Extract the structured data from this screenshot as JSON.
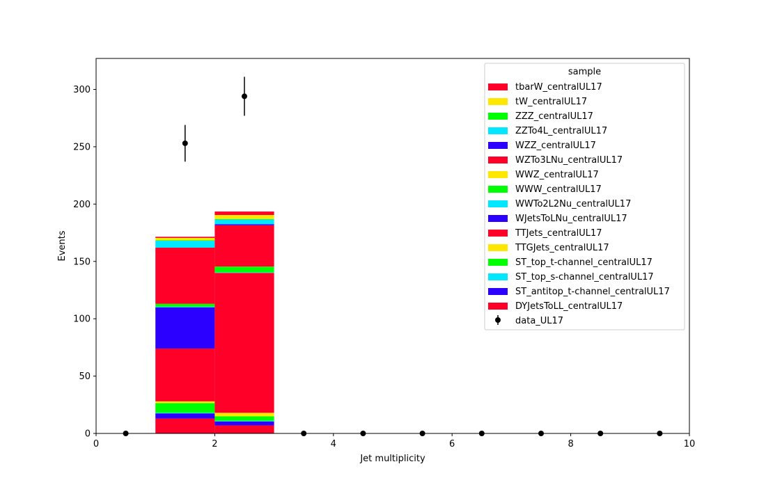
{
  "chart_data": {
    "type": "bar",
    "stacked": true,
    "xlabel": "Jet multiplicity",
    "ylabel": "Events",
    "xlim": [
      0,
      10
    ],
    "ylim": [
      0,
      327
    ],
    "xticks": [
      0,
      2,
      4,
      6,
      8,
      10
    ],
    "yticks": [
      0,
      50,
      100,
      150,
      200,
      250,
      300
    ],
    "grid": false,
    "legend": {
      "title": "sample",
      "placement": "top-right"
    },
    "bins": [
      [
        0,
        1
      ],
      [
        1,
        2
      ],
      [
        2,
        3
      ],
      [
        3,
        4
      ],
      [
        4,
        5
      ],
      [
        5,
        6
      ],
      [
        6,
        7
      ],
      [
        7,
        8
      ],
      [
        8,
        9
      ],
      [
        9,
        10
      ]
    ],
    "series": [
      {
        "name": "DYJetsToLL_centralUL17",
        "color": "#ff0029",
        "values": [
          0,
          13,
          7,
          0,
          0,
          0,
          0,
          0,
          0,
          0
        ]
      },
      {
        "name": "ST_antitop_t-channel_centralUL17",
        "color": "#2c00ff",
        "values": [
          0,
          4.5,
          3.5,
          0,
          0,
          0,
          0,
          0,
          0,
          0
        ]
      },
      {
        "name": "ST_top_s-channel_centralUL17",
        "color": "#00e7ff",
        "values": [
          0,
          0.5,
          0.5,
          0,
          0,
          0,
          0,
          0,
          0,
          0
        ]
      },
      {
        "name": "ST_top_t-channel_centralUL17",
        "color": "#00ff00",
        "values": [
          0,
          8.5,
          4,
          0,
          0,
          0,
          0,
          0,
          0,
          0
        ]
      },
      {
        "name": "TTGJets_centralUL17",
        "color": "#ffe700",
        "values": [
          0,
          1.5,
          3,
          0,
          0,
          0,
          0,
          0,
          0,
          0
        ]
      },
      {
        "name": "TTJets_centralUL17",
        "color": "#ff0029",
        "values": [
          0,
          46,
          122,
          0,
          0,
          0,
          0,
          0,
          0,
          0
        ]
      },
      {
        "name": "WJetsToLNu_centralUL17",
        "color": "#2c00ff",
        "values": [
          0,
          36,
          0,
          0,
          0,
          0,
          0,
          0,
          0,
          0
        ]
      },
      {
        "name": "WWTo2L2Nu_centralUL17",
        "color": "#00e7ff",
        "values": [
          0,
          0.5,
          0.5,
          0,
          0,
          0,
          0,
          0,
          0,
          0
        ]
      },
      {
        "name": "WWW_centralUL17",
        "color": "#00ff00",
        "values": [
          0,
          2.5,
          5,
          0,
          0,
          0,
          0,
          0,
          0,
          0
        ]
      },
      {
        "name": "WWZ_centralUL17",
        "color": "#ffe700",
        "values": [
          0,
          0,
          0,
          0,
          0,
          0,
          0,
          0,
          0,
          0
        ]
      },
      {
        "name": "WZTo3LNu_centralUL17",
        "color": "#ff0029",
        "values": [
          0,
          49,
          36,
          0,
          0,
          0,
          0,
          0,
          0,
          0
        ]
      },
      {
        "name": "WZZ_centralUL17",
        "color": "#2c00ff",
        "values": [
          0,
          0,
          1,
          0,
          0,
          0,
          0,
          0,
          0,
          0
        ]
      },
      {
        "name": "ZZTo4L_centralUL17",
        "color": "#00e7ff",
        "values": [
          0,
          6,
          4,
          0,
          0,
          0,
          0,
          0,
          0,
          0
        ]
      },
      {
        "name": "ZZZ_centralUL17",
        "color": "#00ff00",
        "values": [
          0,
          0.5,
          0.5,
          0,
          0,
          0,
          0,
          0,
          0,
          0
        ]
      },
      {
        "name": "tW_centralUL17",
        "color": "#ffe700",
        "values": [
          0,
          2,
          3.5,
          0,
          0,
          0,
          0,
          0,
          0,
          0
        ]
      },
      {
        "name": "tbarW_centralUL17",
        "color": "#ff0029",
        "values": [
          0,
          1,
          3,
          0,
          0,
          0,
          0,
          0,
          0,
          0
        ]
      }
    ],
    "data_points": {
      "name": "data_UL17",
      "color": "#000000",
      "x": [
        0.5,
        1.5,
        2.5,
        3.5,
        4.5,
        5.5,
        6.5,
        7.5,
        8.5,
        9.5
      ],
      "y": [
        0,
        253,
        294,
        0,
        0,
        0,
        0,
        0,
        0,
        0
      ],
      "yerr": [
        0,
        16,
        17,
        0,
        0,
        0,
        0,
        0,
        0,
        0
      ]
    }
  }
}
